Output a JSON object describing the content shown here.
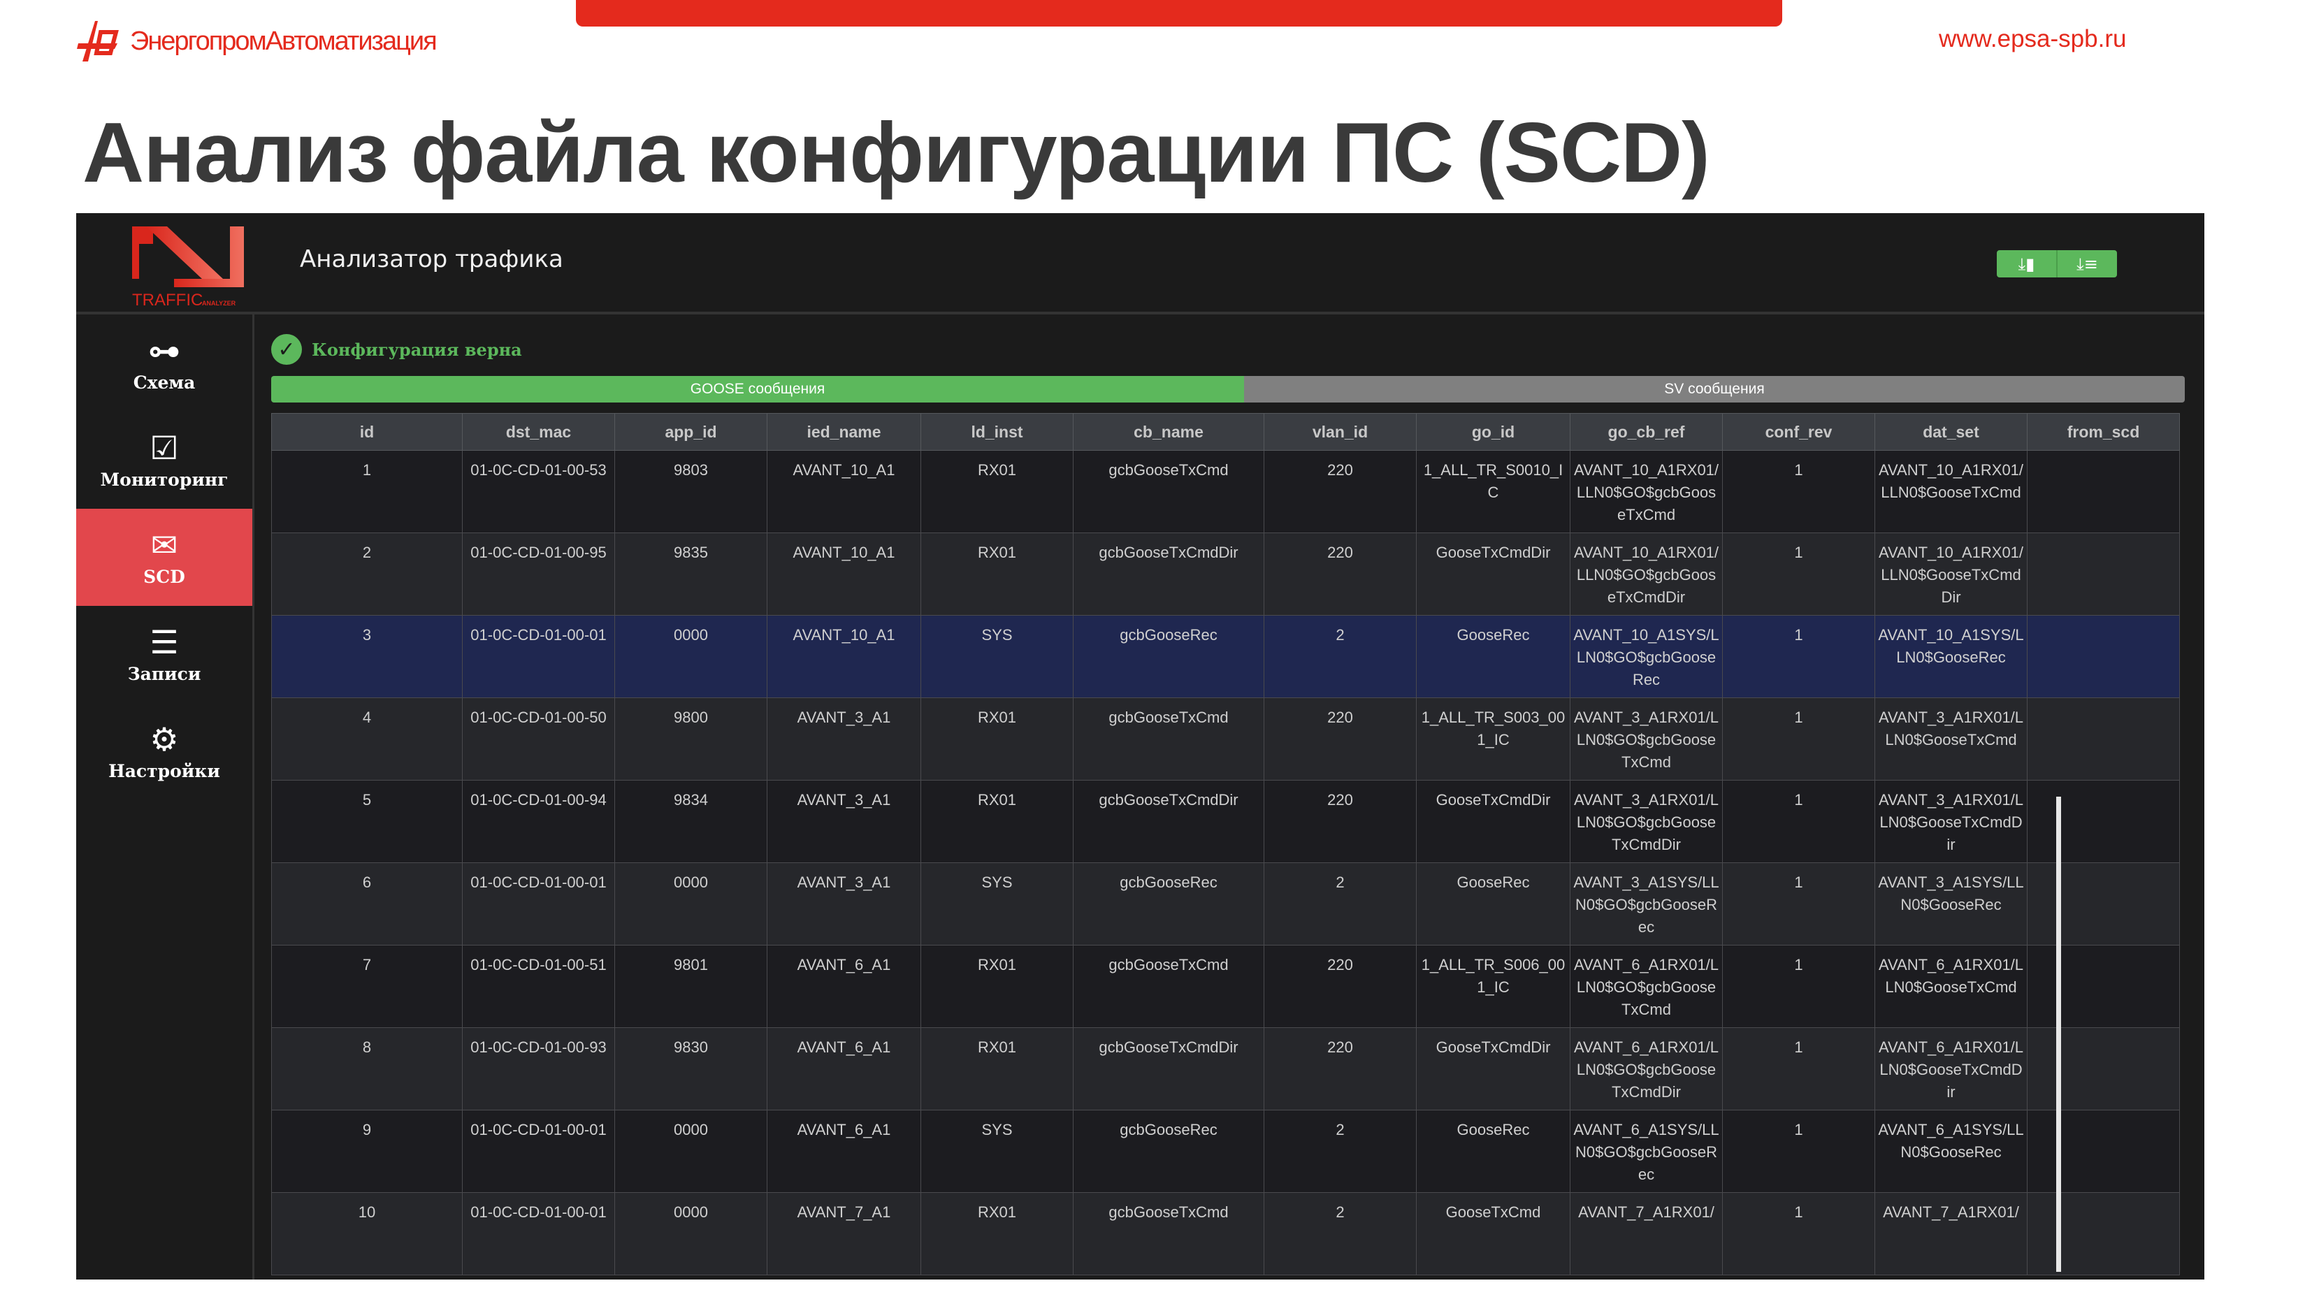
{
  "slide": {
    "company": "ЭнергопромАвтоматизация",
    "url": "www.epsa-spb.ru",
    "title": "Анализ файла конфигурации ПС (SCD)",
    "accent": "#e42a1d"
  },
  "app": {
    "logo_text": "TRAFFIC ANALYZER",
    "title": "Анализатор трафика",
    "header_buttons": [
      {
        "icon": "download-file-icon",
        "glyph": "⤓▮"
      },
      {
        "icon": "download-database-icon",
        "glyph": "⤓≡"
      }
    ],
    "gear_glyph": "⚙",
    "gear2_glyph": "❃"
  },
  "sidebar": {
    "items": [
      {
        "label": "Схема",
        "icon": "diagram-icon",
        "glyph": "⊶",
        "active": false
      },
      {
        "label": "Мониторинг",
        "icon": "checkbox-icon",
        "glyph": "☑",
        "active": false
      },
      {
        "label": "SCD",
        "icon": "envelope-icon",
        "glyph": "✉",
        "active": true
      },
      {
        "label": "Записи",
        "icon": "checklist-icon",
        "glyph": "☰",
        "active": false
      },
      {
        "label": "Настройки",
        "icon": "gears-icon",
        "glyph": "⚙",
        "active": false
      }
    ]
  },
  "status": {
    "text": "Конфигурация верна",
    "glyph": "✓",
    "color": "#5cb85c"
  },
  "tabs": {
    "goose": "GOOSE сообщения",
    "sv": "SV сообщения"
  },
  "table": {
    "columns": [
      "id",
      "dst_mac",
      "app_id",
      "ied_name",
      "ld_inst",
      "cb_name",
      "vlan_id",
      "go_id",
      "go_cb_ref",
      "conf_rev",
      "dat_set",
      "from_scd"
    ],
    "selected_row": 3,
    "rows": [
      [
        "1",
        "01-0C-CD-01-00-53",
        "9803",
        "AVANT_10_A1",
        "RX01",
        "gcbGooseTxCmd",
        "220",
        "1_ALL_TR_S0010_IC",
        "AVANT_10_A1RX01/LLN0$GO$gcbGooseTxCmd",
        "1",
        "AVANT_10_A1RX01/LLN0$GooseTxCmd",
        ""
      ],
      [
        "2",
        "01-0C-CD-01-00-95",
        "9835",
        "AVANT_10_A1",
        "RX01",
        "gcbGooseTxCmdDir",
        "220",
        "GooseTxCmdDir",
        "AVANT_10_A1RX01/LLN0$GO$gcbGooseTxCmdDir",
        "1",
        "AVANT_10_A1RX01/LLN0$GooseTxCmdDir",
        ""
      ],
      [
        "3",
        "01-0C-CD-01-00-01",
        "0000",
        "AVANT_10_A1",
        "SYS",
        "gcbGooseRec",
        "2",
        "GooseRec",
        "AVANT_10_A1SYS/LLN0$GO$gcbGooseRec",
        "1",
        "AVANT_10_A1SYS/LLN0$GooseRec",
        ""
      ],
      [
        "4",
        "01-0C-CD-01-00-50",
        "9800",
        "AVANT_3_A1",
        "RX01",
        "gcbGooseTxCmd",
        "220",
        "1_ALL_TR_S003_001_IC",
        "AVANT_3_A1RX01/LLN0$GO$gcbGooseTxCmd",
        "1",
        "AVANT_3_A1RX01/LLN0$GooseTxCmd",
        ""
      ],
      [
        "5",
        "01-0C-CD-01-00-94",
        "9834",
        "AVANT_3_A1",
        "RX01",
        "gcbGooseTxCmdDir",
        "220",
        "GooseTxCmdDir",
        "AVANT_3_A1RX01/LLN0$GO$gcbGooseTxCmdDir",
        "1",
        "AVANT_3_A1RX01/LLN0$GooseTxCmdDir",
        ""
      ],
      [
        "6",
        "01-0C-CD-01-00-01",
        "0000",
        "AVANT_3_A1",
        "SYS",
        "gcbGooseRec",
        "2",
        "GooseRec",
        "AVANT_3_A1SYS/LLN0$GO$gcbGooseRec",
        "1",
        "AVANT_3_A1SYS/LLN0$GooseRec",
        ""
      ],
      [
        "7",
        "01-0C-CD-01-00-51",
        "9801",
        "AVANT_6_A1",
        "RX01",
        "gcbGooseTxCmd",
        "220",
        "1_ALL_TR_S006_001_IC",
        "AVANT_6_A1RX01/LLN0$GO$gcbGooseTxCmd",
        "1",
        "AVANT_6_A1RX01/LLN0$GooseTxCmd",
        ""
      ],
      [
        "8",
        "01-0C-CD-01-00-93",
        "9830",
        "AVANT_6_A1",
        "RX01",
        "gcbGooseTxCmdDir",
        "220",
        "GooseTxCmdDir",
        "AVANT_6_A1RX01/LLN0$GO$gcbGooseTxCmdDir",
        "1",
        "AVANT_6_A1RX01/LLN0$GooseTxCmdDir",
        ""
      ],
      [
        "9",
        "01-0C-CD-01-00-01",
        "0000",
        "AVANT_6_A1",
        "SYS",
        "gcbGooseRec",
        "2",
        "GooseRec",
        "AVANT_6_A1SYS/LLN0$GO$gcbGooseRec",
        "1",
        "AVANT_6_A1SYS/LLN0$GooseRec",
        ""
      ],
      [
        "10",
        "01-0C-CD-01-00-01",
        "0000",
        "AVANT_7_A1",
        "RX01",
        "gcbGooseTxCmd",
        "2",
        "GooseTxCmd",
        "AVANT_7_A1RX01/",
        "1",
        "AVANT_7_A1RX01/",
        ""
      ]
    ]
  }
}
